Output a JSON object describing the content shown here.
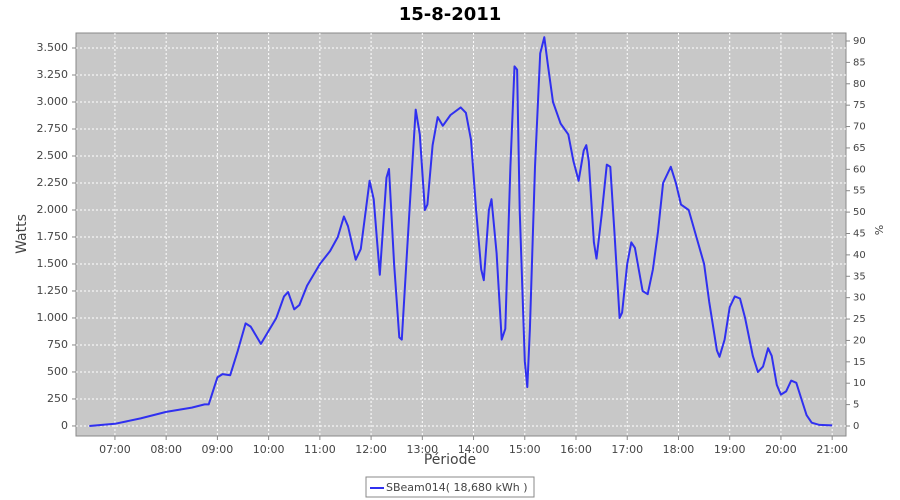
{
  "chart_data": {
    "type": "line",
    "title": "15-8-2011",
    "xlabel": "Période",
    "ylabel": "Watts",
    "y2label": "%",
    "x": [
      6.5,
      7.0,
      7.5,
      8.0,
      8.5,
      8.75,
      8.83,
      9.0,
      9.1,
      9.25,
      9.4,
      9.55,
      9.65,
      9.85,
      10.0,
      10.15,
      10.3,
      10.38,
      10.5,
      10.6,
      10.75,
      11.0,
      11.2,
      11.35,
      11.47,
      11.55,
      11.7,
      11.8,
      11.97,
      12.05,
      12.17,
      12.3,
      12.35,
      12.45,
      12.55,
      12.6,
      12.75,
      12.87,
      12.95,
      13.05,
      13.1,
      13.2,
      13.3,
      13.4,
      13.55,
      13.75,
      13.85,
      13.95,
      14.05,
      14.15,
      14.2,
      14.3,
      14.35,
      14.45,
      14.55,
      14.62,
      14.72,
      14.8,
      14.85,
      14.9,
      15.0,
      15.05,
      15.1,
      15.2,
      15.3,
      15.38,
      15.45,
      15.55,
      15.7,
      15.85,
      15.95,
      16.05,
      16.15,
      16.2,
      16.25,
      16.35,
      16.4,
      16.5,
      16.6,
      16.67,
      16.75,
      16.85,
      16.9,
      17.0,
      17.08,
      17.15,
      17.3,
      17.4,
      17.5,
      17.6,
      17.7,
      17.85,
      17.95,
      18.05,
      18.2,
      18.35,
      18.5,
      18.6,
      18.75,
      18.8,
      18.9,
      19.0,
      19.1,
      19.2,
      19.3,
      19.45,
      19.55,
      19.65,
      19.75,
      19.82,
      19.92,
      20.0,
      20.1,
      20.2,
      20.3,
      20.4,
      20.5,
      20.6,
      20.75,
      21.0
    ],
    "series": [
      {
        "name": "SBeam014( 18,680 kWh )",
        "color": "#3030f0",
        "values": [
          0,
          20,
          70,
          130,
          170,
          200,
          200,
          450,
          480,
          470,
          700,
          950,
          920,
          760,
          880,
          1000,
          1200,
          1240,
          1080,
          1120,
          1300,
          1500,
          1620,
          1750,
          1940,
          1850,
          1540,
          1640,
          2270,
          2100,
          1400,
          2300,
          2380,
          1500,
          820,
          800,
          2000,
          2930,
          2700,
          2000,
          2050,
          2600,
          2860,
          2780,
          2880,
          2950,
          2900,
          2650,
          2000,
          1450,
          1350,
          2000,
          2100,
          1600,
          800,
          900,
          2400,
          3330,
          3300,
          2000,
          600,
          360,
          900,
          2400,
          3450,
          3600,
          3350,
          3000,
          2800,
          2700,
          2450,
          2270,
          2550,
          2600,
          2450,
          1700,
          1550,
          1950,
          2420,
          2400,
          1800,
          1000,
          1050,
          1500,
          1700,
          1650,
          1250,
          1220,
          1450,
          1800,
          2250,
          2400,
          2250,
          2050,
          2000,
          1750,
          1500,
          1150,
          700,
          640,
          800,
          1100,
          1200,
          1180,
          1000,
          650,
          500,
          550,
          720,
          650,
          380,
          290,
          320,
          420,
          400,
          250,
          100,
          30,
          10,
          5
        ]
      }
    ],
    "xlim": [
      6.24,
      21.27
    ],
    "xticks": [
      {
        "value": 7,
        "label": "07:00"
      },
      {
        "value": 8,
        "label": "08:00"
      },
      {
        "value": 9,
        "label": "09:00"
      },
      {
        "value": 10,
        "label": "10:00"
      },
      {
        "value": 11,
        "label": "11:00"
      },
      {
        "value": 12,
        "label": "12:00"
      },
      {
        "value": 13,
        "label": "13:00"
      },
      {
        "value": 14,
        "label": "14:00"
      },
      {
        "value": 15,
        "label": "15:00"
      },
      {
        "value": 16,
        "label": "16:00"
      },
      {
        "value": 17,
        "label": "17:00"
      },
      {
        "value": 18,
        "label": "18:00"
      },
      {
        "value": 19,
        "label": "19:00"
      },
      {
        "value": 20,
        "label": "20:00"
      },
      {
        "value": 21,
        "label": "21:00"
      }
    ],
    "ylim": [
      -93,
      3639
    ],
    "yticks": [
      0,
      250,
      500,
      750,
      {
        "value": 1000,
        "label": "1.000"
      },
      {
        "value": 1250,
        "label": "1.250"
      },
      {
        "value": 1500,
        "label": "1.500"
      },
      {
        "value": 1750,
        "label": "1.750"
      },
      {
        "value": 2000,
        "label": "2.000"
      },
      {
        "value": 2250,
        "label": "2.250"
      },
      {
        "value": 2500,
        "label": "2.500"
      },
      {
        "value": 2750,
        "label": "2.750"
      },
      {
        "value": 3000,
        "label": "3.000"
      },
      {
        "value": 3250,
        "label": "3.250"
      },
      {
        "value": 3500,
        "label": "3.500"
      }
    ],
    "y2lim": [
      -2.34,
      91.87
    ],
    "y2ticks": [
      0,
      5,
      10,
      15,
      20,
      25,
      30,
      35,
      40,
      45,
      50,
      55,
      60,
      65,
      70,
      75,
      80,
      85,
      90
    ],
    "grid": true
  }
}
